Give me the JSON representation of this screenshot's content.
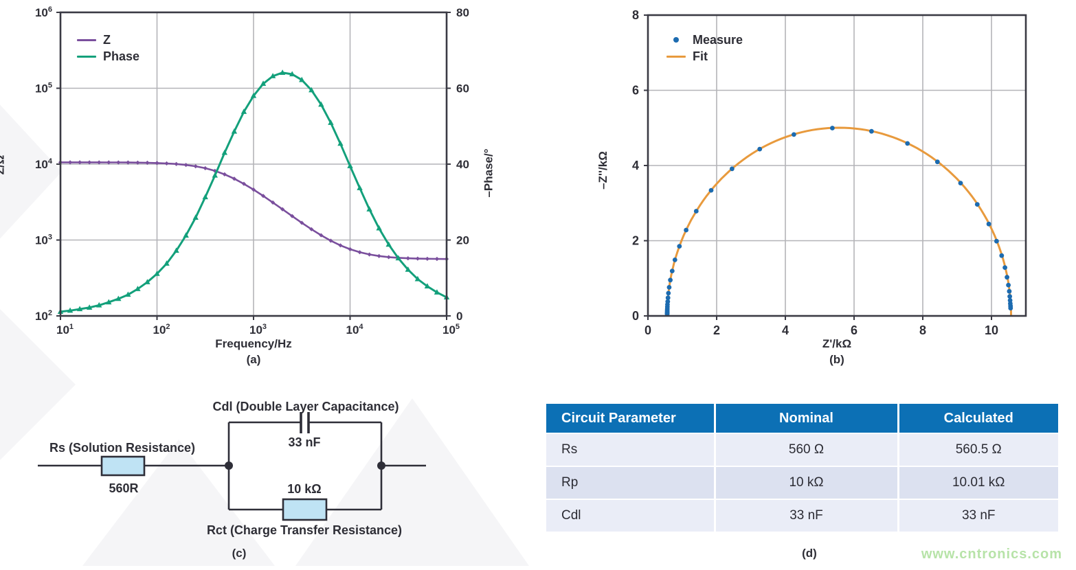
{
  "colors": {
    "z_line": "#7a4f9d",
    "phase_line": "#13a07b",
    "measure_dot": "#1c6bb0",
    "fit_line": "#e89a3d",
    "axis_frame": "#3a3a44",
    "grid": "#b4b4b8",
    "text": "#2e2e36",
    "table_header_bg": "#0c70b5",
    "table_row_light": "#eaedf7",
    "table_row_dark": "#dce1f0",
    "component_fill": "#bfe3f4",
    "watermark": "#b7e3a8"
  },
  "captions": {
    "a": "(a)",
    "b": "(b)",
    "c": "(c)",
    "d": "(d)"
  },
  "watermark_text": "www.cntronics.com",
  "chart_data": [
    {
      "id": "a",
      "type": "line",
      "xlabel": "Frequency/Hz",
      "x_scale": "log",
      "x_range": [
        10,
        100000
      ],
      "x_tick_exponents": [
        1,
        2,
        3,
        4,
        5
      ],
      "ylabel_left": "Z/Ω",
      "y_left_scale": "log",
      "y_left_range": [
        100,
        1000000
      ],
      "y_left_tick_exponents": [
        2,
        3,
        4,
        5,
        6
      ],
      "ylabel_right": "–Phase/°",
      "y_right_range": [
        0,
        80
      ],
      "y_right_ticks": [
        0,
        20,
        40,
        60,
        80
      ],
      "grid": true,
      "legend_position": "top-left",
      "x": [
        10,
        12.59,
        15.85,
        19.95,
        25.12,
        31.62,
        39.81,
        50.12,
        63.1,
        79.43,
        100,
        125.9,
        158.5,
        199.5,
        251.2,
        316.2,
        398.1,
        501.2,
        631,
        794.3,
        1000,
        1259,
        1585,
        1995,
        2512,
        3162,
        3981,
        5012,
        6310,
        7943,
        10000,
        12590,
        15850,
        19950,
        25120,
        31620,
        39810,
        50120,
        63100,
        79430,
        100000
      ],
      "series": [
        {
          "name": "Z",
          "axis": "left",
          "marker": "diamond",
          "values": [
            10558,
            10556,
            10554,
            10551,
            10546,
            10537,
            10525,
            10503,
            10471,
            10420,
            10341,
            10219,
            10034,
            9760,
            9370,
            8837,
            8154,
            7333,
            6427,
            5502,
            4614,
            3814,
            3120,
            2541,
            2066,
            1686,
            1386,
            1155,
            980,
            850,
            756,
            690,
            645,
            615,
            595,
            583,
            574,
            569,
            566,
            564,
            562
          ]
        },
        {
          "name": "Phase",
          "axis": "right",
          "marker": "triangle",
          "values": [
            1.1,
            1.4,
            1.8,
            2.2,
            2.8,
            3.6,
            4.5,
            5.6,
            7.1,
            8.9,
            11.1,
            13.8,
            17.2,
            21.2,
            25.9,
            31.3,
            37.0,
            43.0,
            48.6,
            53.8,
            58.0,
            61.2,
            63.2,
            64.1,
            63.7,
            62.2,
            59.5,
            55.7,
            50.9,
            45.4,
            39.5,
            33.7,
            28.1,
            23.1,
            18.8,
            15.2,
            12.2,
            9.7,
            7.8,
            6.2,
            4.9
          ]
        }
      ]
    },
    {
      "id": "b",
      "type": "scatter",
      "xlabel": "Z'/kΩ",
      "ylabel": "–Z''/kΩ",
      "x_range": [
        0,
        11
      ],
      "y_range": [
        0,
        8
      ],
      "x_ticks": [
        0,
        2,
        4,
        6,
        8,
        10
      ],
      "y_ticks": [
        0,
        2,
        4,
        6,
        8
      ],
      "grid": true,
      "legend_position": "top-left",
      "series": [
        {
          "name": "Measure",
          "type": "scatter",
          "x": [
            10.556,
            10.553,
            10.549,
            10.543,
            10.533,
            10.517,
            10.493,
            10.453,
            10.392,
            10.296,
            10.148,
            9.922,
            9.585,
            9.099,
            8.426,
            7.554,
            6.508,
            5.368,
            4.247,
            3.253,
            2.447,
            1.84,
            1.407,
            1.112,
            0.915,
            0.787,
            0.705,
            0.652,
            0.618,
            0.597,
            0.583,
            0.575,
            0.569,
            0.566,
            0.564,
            0.562,
            0.561,
            0.561,
            0.561,
            0.56,
            0.56
          ],
          "y": [
            0.207,
            0.261,
            0.328,
            0.413,
            0.519,
            0.653,
            0.82,
            1.028,
            1.286,
            1.604,
            1.988,
            2.444,
            2.966,
            3.532,
            4.097,
            4.586,
            4.91,
            4.996,
            4.824,
            4.436,
            3.912,
            3.341,
            2.785,
            2.284,
            1.852,
            1.49,
            1.194,
            0.954,
            0.76,
            0.605,
            0.481,
            0.382,
            0.304,
            0.242,
            0.192,
            0.152,
            0.121,
            0.096,
            0.076,
            0.061,
            0.048
          ]
        },
        {
          "name": "Fit",
          "type": "line",
          "semicircle": {
            "x_start": 0.56,
            "x_end": 10.57
          }
        }
      ]
    }
  ],
  "circuit": {
    "rs_label": "Rs (Solution Resistance)",
    "rs_value": "560R",
    "cdl_label": "Cdl (Double Layer Capacitance)",
    "cdl_value": "33 nF",
    "rct_label": "Rct (Charge Transfer Resistance)",
    "rct_value": "10 kΩ"
  },
  "table": {
    "headers": [
      "Circuit Parameter",
      "Nominal",
      "Calculated"
    ],
    "rows": [
      [
        "Rs",
        "560 Ω",
        "560.5 Ω"
      ],
      [
        "Rp",
        "10 kΩ",
        "10.01 kΩ"
      ],
      [
        "Cdl",
        "33 nF",
        "33 nF"
      ]
    ]
  }
}
